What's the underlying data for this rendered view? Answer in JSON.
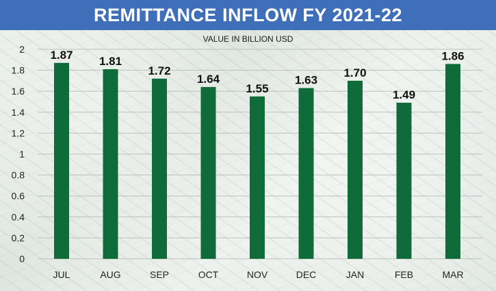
{
  "chart_data": {
    "type": "bar",
    "title": "REMITTANCE INFLOW FY 2021-22",
    "subtitle": "VALUE IN BILLION USD",
    "categories": [
      "JUL",
      "AUG",
      "SEP",
      "OCT",
      "NOV",
      "DEC",
      "JAN",
      "FEB",
      "MAR"
    ],
    "values": [
      1.87,
      1.81,
      1.72,
      1.64,
      1.55,
      1.63,
      1.7,
      1.49,
      1.86
    ],
    "data_labels": [
      "1.87",
      "1.81",
      "1.72",
      "1.64",
      "1.55",
      "1.63",
      "1.70",
      "1.49",
      "1.86"
    ],
    "ylim": [
      0,
      2
    ],
    "yticks": [
      "0",
      "0.2",
      "0.4",
      "0.6",
      "0.8",
      "1",
      "1.2",
      "1.4",
      "1.6",
      "1.8",
      "2"
    ],
    "grid": true,
    "xlabel": "",
    "ylabel": "",
    "colors": {
      "bar": "#0f6b39",
      "title_bg": "#3f6fb9",
      "grid": "#b9c2bb"
    }
  }
}
